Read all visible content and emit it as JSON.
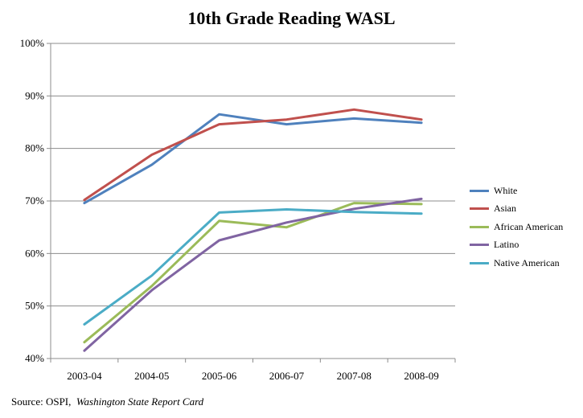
{
  "chart_data": {
    "type": "line",
    "title": "10th Grade Reading WASL",
    "xlabel": "",
    "ylabel": "",
    "categories": [
      "2003-04",
      "2004-05",
      "2005-06",
      "2006-07",
      "2007-08",
      "2008-09"
    ],
    "ylim": [
      40,
      100
    ],
    "yticks": [
      40,
      50,
      60,
      70,
      80,
      90,
      100
    ],
    "ytick_labels": [
      "40%",
      "50%",
      "60%",
      "70%",
      "80%",
      "90%",
      "100%"
    ],
    "grid": true,
    "legend_position": "right",
    "series": [
      {
        "name": "White",
        "color": "#4F81BD",
        "values": [
          69.6,
          76.9,
          86.5,
          84.6,
          85.7,
          84.9
        ]
      },
      {
        "name": "Asian",
        "color": "#C0504D",
        "values": [
          70.2,
          78.8,
          84.6,
          85.5,
          87.4,
          85.5
        ]
      },
      {
        "name": "African American",
        "color": "#9BBB59",
        "values": [
          43.1,
          53.8,
          66.2,
          65.0,
          69.6,
          69.4
        ]
      },
      {
        "name": "Latino",
        "color": "#8064A2",
        "values": [
          41.5,
          53.0,
          62.5,
          65.9,
          68.5,
          70.4
        ]
      },
      {
        "name": "Native American",
        "color": "#4BACC6",
        "values": [
          46.5,
          55.8,
          67.8,
          68.4,
          67.9,
          67.6
        ]
      }
    ]
  },
  "source": {
    "prefix": "Source: OSPI,",
    "italic": "Washington State Report Card"
  }
}
